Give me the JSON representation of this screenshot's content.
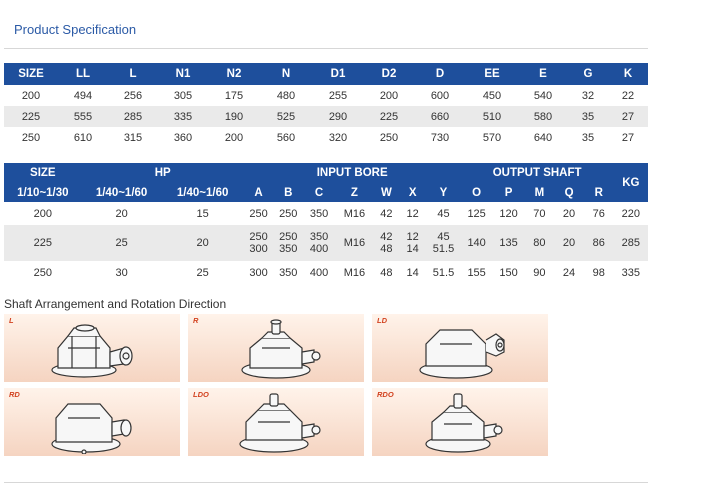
{
  "title": "Product Specification",
  "table1": {
    "headers": [
      "SIZE",
      "LL",
      "L",
      "N1",
      "N2",
      "N",
      "D1",
      "D2",
      "D",
      "EE",
      "E",
      "G",
      "K"
    ],
    "rows": [
      [
        "200",
        "494",
        "256",
        "305",
        "175",
        "480",
        "255",
        "200",
        "600",
        "450",
        "540",
        "32",
        "22"
      ],
      [
        "225",
        "555",
        "285",
        "335",
        "190",
        "525",
        "290",
        "225",
        "660",
        "510",
        "580",
        "35",
        "27"
      ],
      [
        "250",
        "610",
        "315",
        "360",
        "200",
        "560",
        "320",
        "250",
        "730",
        "570",
        "640",
        "35",
        "27"
      ]
    ]
  },
  "table2": {
    "group_headers": {
      "size": "SIZE",
      "hp": "HP",
      "input_bore": "INPUT BORE",
      "output_shaft": "OUTPUT SHAFT",
      "kg": "KG"
    },
    "sub_headers": [
      "1/10~1/30",
      "1/40~1/60",
      "1/40~1/60",
      "A",
      "B",
      "C",
      "Z",
      "W",
      "X",
      "Y",
      "O",
      "P",
      "M",
      "Q",
      "R"
    ],
    "rows": [
      [
        "200",
        "20",
        "15",
        "250",
        "250",
        "350",
        "M16",
        "42",
        "12",
        "45",
        "125",
        "120",
        "70",
        "20",
        "76",
        "220"
      ],
      [
        "225",
        "25",
        "20",
        [
          "250",
          "300"
        ],
        [
          "250",
          "350"
        ],
        [
          "350",
          "400"
        ],
        "M16",
        [
          "42",
          "48"
        ],
        [
          "12",
          "14"
        ],
        [
          "45",
          "51.5"
        ],
        "140",
        "135",
        "80",
        "20",
        "86",
        "285"
      ],
      [
        "250",
        "30",
        "25",
        "300",
        "350",
        "400",
        "M16",
        "48",
        "14",
        "51.5",
        "155",
        "150",
        "90",
        "24",
        "98",
        "335"
      ]
    ]
  },
  "shaft_section": {
    "title": "Shaft Arrangement and Rotation Direction",
    "items": [
      {
        "label": "L",
        "icon": "gearbox-shaft-left-icon"
      },
      {
        "label": "R",
        "icon": "gearbox-shaft-right-icon"
      },
      {
        "label": "LD",
        "icon": "gearbox-shaft-left-down-icon"
      },
      {
        "label": "RD",
        "icon": "gearbox-shaft-right-down-icon"
      },
      {
        "label": "LDO",
        "icon": "gearbox-shaft-left-down-out-icon"
      },
      {
        "label": "RDO",
        "icon": "gearbox-shaft-right-down-out-icon"
      }
    ]
  },
  "colors": {
    "header_bg": "#1e4f9c",
    "header_text": "#ffffff",
    "title": "#2b5aa6",
    "row_stripe": "#eaeaea",
    "label_red": "#d2421f",
    "tile_gradient_top": "#fff3ea",
    "tile_gradient_bottom": "#f5d4c1"
  }
}
